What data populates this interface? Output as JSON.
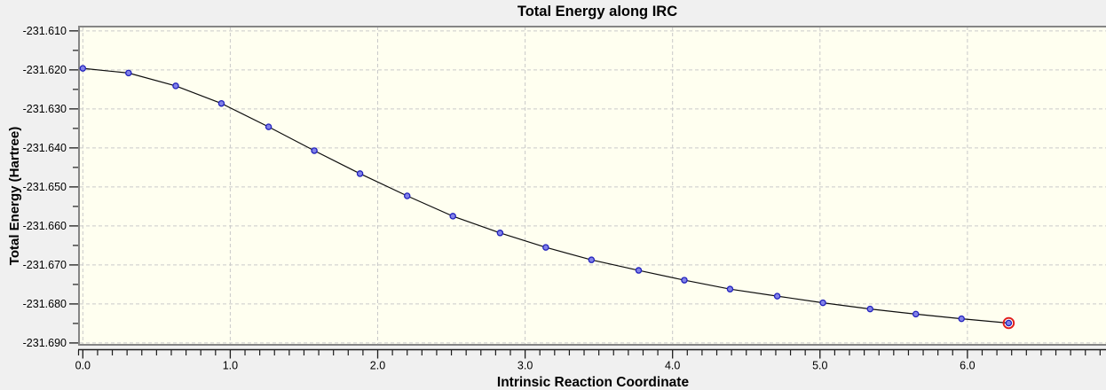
{
  "window": {
    "background": "#f0f0f0"
  },
  "chart_data": {
    "type": "line",
    "title": "Total Energy along IRC",
    "xlabel": "Intrinsic Reaction Coordinate",
    "ylabel": "Total Energy (Hartree)",
    "series": [
      {
        "name": "Total Energy",
        "x": [
          0.0,
          0.31,
          0.63,
          0.94,
          1.26,
          1.57,
          1.88,
          2.2,
          2.51,
          2.83,
          3.14,
          3.45,
          3.77,
          4.08,
          4.39,
          4.71,
          5.02,
          5.34,
          5.65,
          5.96,
          6.28
        ],
        "y": [
          -231.6196,
          -231.6208,
          -231.6241,
          -231.6286,
          -231.6346,
          -231.6407,
          -231.6466,
          -231.6523,
          -231.6575,
          -231.6618,
          -231.6655,
          -231.6687,
          -231.6714,
          -231.6739,
          -231.6762,
          -231.678,
          -231.6797,
          -231.6813,
          -231.6826,
          -231.6838,
          -231.6849
        ]
      }
    ],
    "selected_point_index": 20,
    "xlim": [
      -0.02,
      6.94
    ],
    "ylim": [
      -231.6907,
      -231.6089
    ],
    "x_ticks": {
      "values": [
        0,
        1,
        2,
        3,
        4,
        5,
        6
      ],
      "labels": [
        "0.0",
        "1.0",
        "2.0",
        "3.0",
        "4.0",
        "5.0",
        "6.0"
      ]
    },
    "y_ticks": {
      "values": [
        -231.61,
        -231.62,
        -231.63,
        -231.64,
        -231.65,
        -231.66,
        -231.67,
        -231.68,
        -231.69
      ],
      "labels": [
        "-231.610",
        "-231.620",
        "-231.630",
        "-231.640",
        "-231.650",
        "-231.660",
        "-231.670",
        "-231.680",
        "-231.690"
      ]
    },
    "x_minor_step": 0.1,
    "y_minor_step": 0.005,
    "x_minor_max": 6.9,
    "grid": {
      "style": "dashed",
      "on": true
    },
    "legend": "none",
    "colors": {
      "plot_bg": "#fffff0",
      "grid": "#c9c9c9",
      "border": "#858585",
      "axis_line": "#1c1c1c",
      "tick": "#1c1c1c",
      "curve": "#0d0d0d",
      "marker_fill": "#8282e8",
      "marker_stroke": "#2121bd",
      "selected_ring": "#e11c1c",
      "text": "#000000"
    }
  }
}
